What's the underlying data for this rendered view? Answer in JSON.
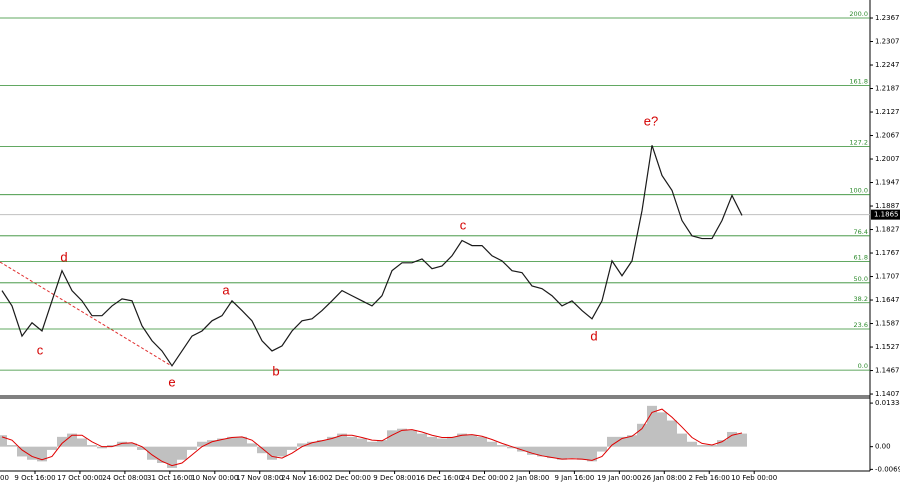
{
  "chart_data": {
    "type": "line",
    "values": [
      1.1671,
      1.1632,
      1.1555,
      1.1589,
      1.1568,
      1.1645,
      1.1722,
      1.1671,
      1.1645,
      1.1607,
      1.1607,
      1.1632,
      1.165,
      1.1645,
      1.1581,
      1.1543,
      1.1517,
      1.1479,
      1.1517,
      1.1555,
      1.1568,
      1.1594,
      1.1607,
      1.1645,
      1.162,
      1.1594,
      1.1543,
      1.1517,
      1.153,
      1.1568,
      1.1594,
      1.1599,
      1.162,
      1.1645,
      1.1671,
      1.1658,
      1.1645,
      1.1632,
      1.1658,
      1.1722,
      1.1742,
      1.1742,
      1.1752,
      1.1727,
      1.1734,
      1.176,
      1.1799,
      1.1786,
      1.1786,
      1.176,
      1.1747,
      1.1722,
      1.1717,
      1.1683,
      1.1676,
      1.1658,
      1.1632,
      1.1645,
      1.162,
      1.1599,
      1.1645,
      1.1747,
      1.1709,
      1.1747,
      1.1875,
      1.2042,
      1.1965,
      1.1927,
      1.185,
      1.1811,
      1.1804,
      1.1804,
      1.185,
      1.1914,
      1.1863
    ],
    "color": "#1a1a1a",
    "ylim": [
      1.1402,
      1.2413
    ],
    "yticks": [
      1.2367,
      1.2307,
      1.2247,
      1.2187,
      1.2127,
      1.2067,
      1.2007,
      1.1947,
      1.1887,
      1.1827,
      1.1767,
      1.1707,
      1.1647,
      1.1587,
      1.1527,
      1.1467,
      1.1407
    ],
    "current_price": 1.1865,
    "fib_levels": [
      {
        "value": 1.1468,
        "label": "0.0"
      },
      {
        "value": 1.1573,
        "label": "23.6"
      },
      {
        "value": 1.164,
        "label": "38.2"
      },
      {
        "value": 1.1691,
        "label": "50.0"
      },
      {
        "value": 1.1745,
        "label": "61.8"
      },
      {
        "value": 1.1811,
        "label": "76.4"
      },
      {
        "value": 1.1916,
        "label": "100.0"
      },
      {
        "value": 1.2039,
        "label": "127.2"
      },
      {
        "value": 1.2195,
        "label": "161.8"
      },
      {
        "value": 1.2367,
        "label": "200.0"
      }
    ],
    "fib_color": "#2e8b2e",
    "wave_labels": [
      "c",
      "d",
      "e",
      "a",
      "b",
      "c",
      "d",
      "e?"
    ],
    "x_labels": [
      "00",
      "9 Oct 16:00",
      "17 Oct 00:00",
      "24 Oct 08:00",
      "31 Oct 16:00",
      "10 Nov 00:00",
      "17 Nov 08:00",
      "24 Nov 16:00",
      "2 Dec 00:00",
      "9 Dec 08:00",
      "16 Dec 16:00",
      "24 Dec 00:00",
      "2 Jan 08:00",
      "9 Jan 16:00",
      "19 Jan 00:00",
      "26 Jan 08:00",
      "2 Feb 16:00",
      "10 Feb 00:00"
    ],
    "macd": {
      "histogram": [
        0.0035,
        0.0005,
        -0.003,
        -0.004,
        -0.0045,
        -0.001,
        0.003,
        0.004,
        0.0025,
        0.0005,
        -0.0005,
        0.0005,
        0.0015,
        0.001,
        -0.001,
        -0.004,
        -0.005,
        -0.0065,
        -0.004,
        -0.001,
        0.0015,
        0.002,
        0.0025,
        0.003,
        0.003,
        0.001,
        -0.002,
        -0.004,
        -0.003,
        -0.001,
        0.001,
        0.0015,
        0.002,
        0.003,
        0.004,
        0.003,
        0.0025,
        0.0015,
        0.002,
        0.005,
        0.0055,
        0.005,
        0.004,
        0.003,
        0.0025,
        0.003,
        0.004,
        0.0035,
        0.003,
        0.0015,
        0.0005,
        -0.0005,
        -0.0015,
        -0.0025,
        -0.003,
        -0.0035,
        -0.004,
        -0.0035,
        -0.004,
        -0.0045,
        -0.0015,
        0.003,
        0.003,
        0.0035,
        0.007,
        0.0125,
        0.0105,
        0.008,
        0.004,
        0.0015,
        0.0005,
        0.0005,
        0.002,
        0.0045,
        0.004
      ],
      "signal": [
        0.003,
        0.002,
        -0.001,
        -0.003,
        -0.004,
        -0.003,
        0.001,
        0.0035,
        0.0035,
        0.0015,
        0,
        0,
        0.001,
        0.0012,
        0,
        -0.0025,
        -0.0045,
        -0.0058,
        -0.005,
        -0.0025,
        0,
        0.0015,
        0.0022,
        0.0028,
        0.003,
        0.002,
        -0.0005,
        -0.003,
        -0.0035,
        -0.002,
        0,
        0.0012,
        0.0018,
        0.0025,
        0.0035,
        0.0035,
        0.0028,
        0.002,
        0.0018,
        0.0035,
        0.005,
        0.0052,
        0.0045,
        0.0035,
        0.0028,
        0.0028,
        0.0035,
        0.0037,
        0.0032,
        0.0022,
        0.001,
        0,
        -0.001,
        -0.002,
        -0.0028,
        -0.0033,
        -0.0038,
        -0.0037,
        -0.0038,
        -0.0042,
        -0.003,
        0.0005,
        0.0025,
        0.0032,
        0.0055,
        0.0105,
        0.0115,
        0.009,
        0.006,
        0.0028,
        0.001,
        0.0005,
        0.0015,
        0.0035,
        0.0042
      ],
      "histogram_color": "#c0c0c0",
      "signal_color": "#e00000",
      "ylim": [
        -0.00745,
        0.0149
      ],
      "yticks": [
        0.01334,
        {
          "value": 0,
          "label": "0.00"
        },
        -0.00695
      ]
    }
  }
}
